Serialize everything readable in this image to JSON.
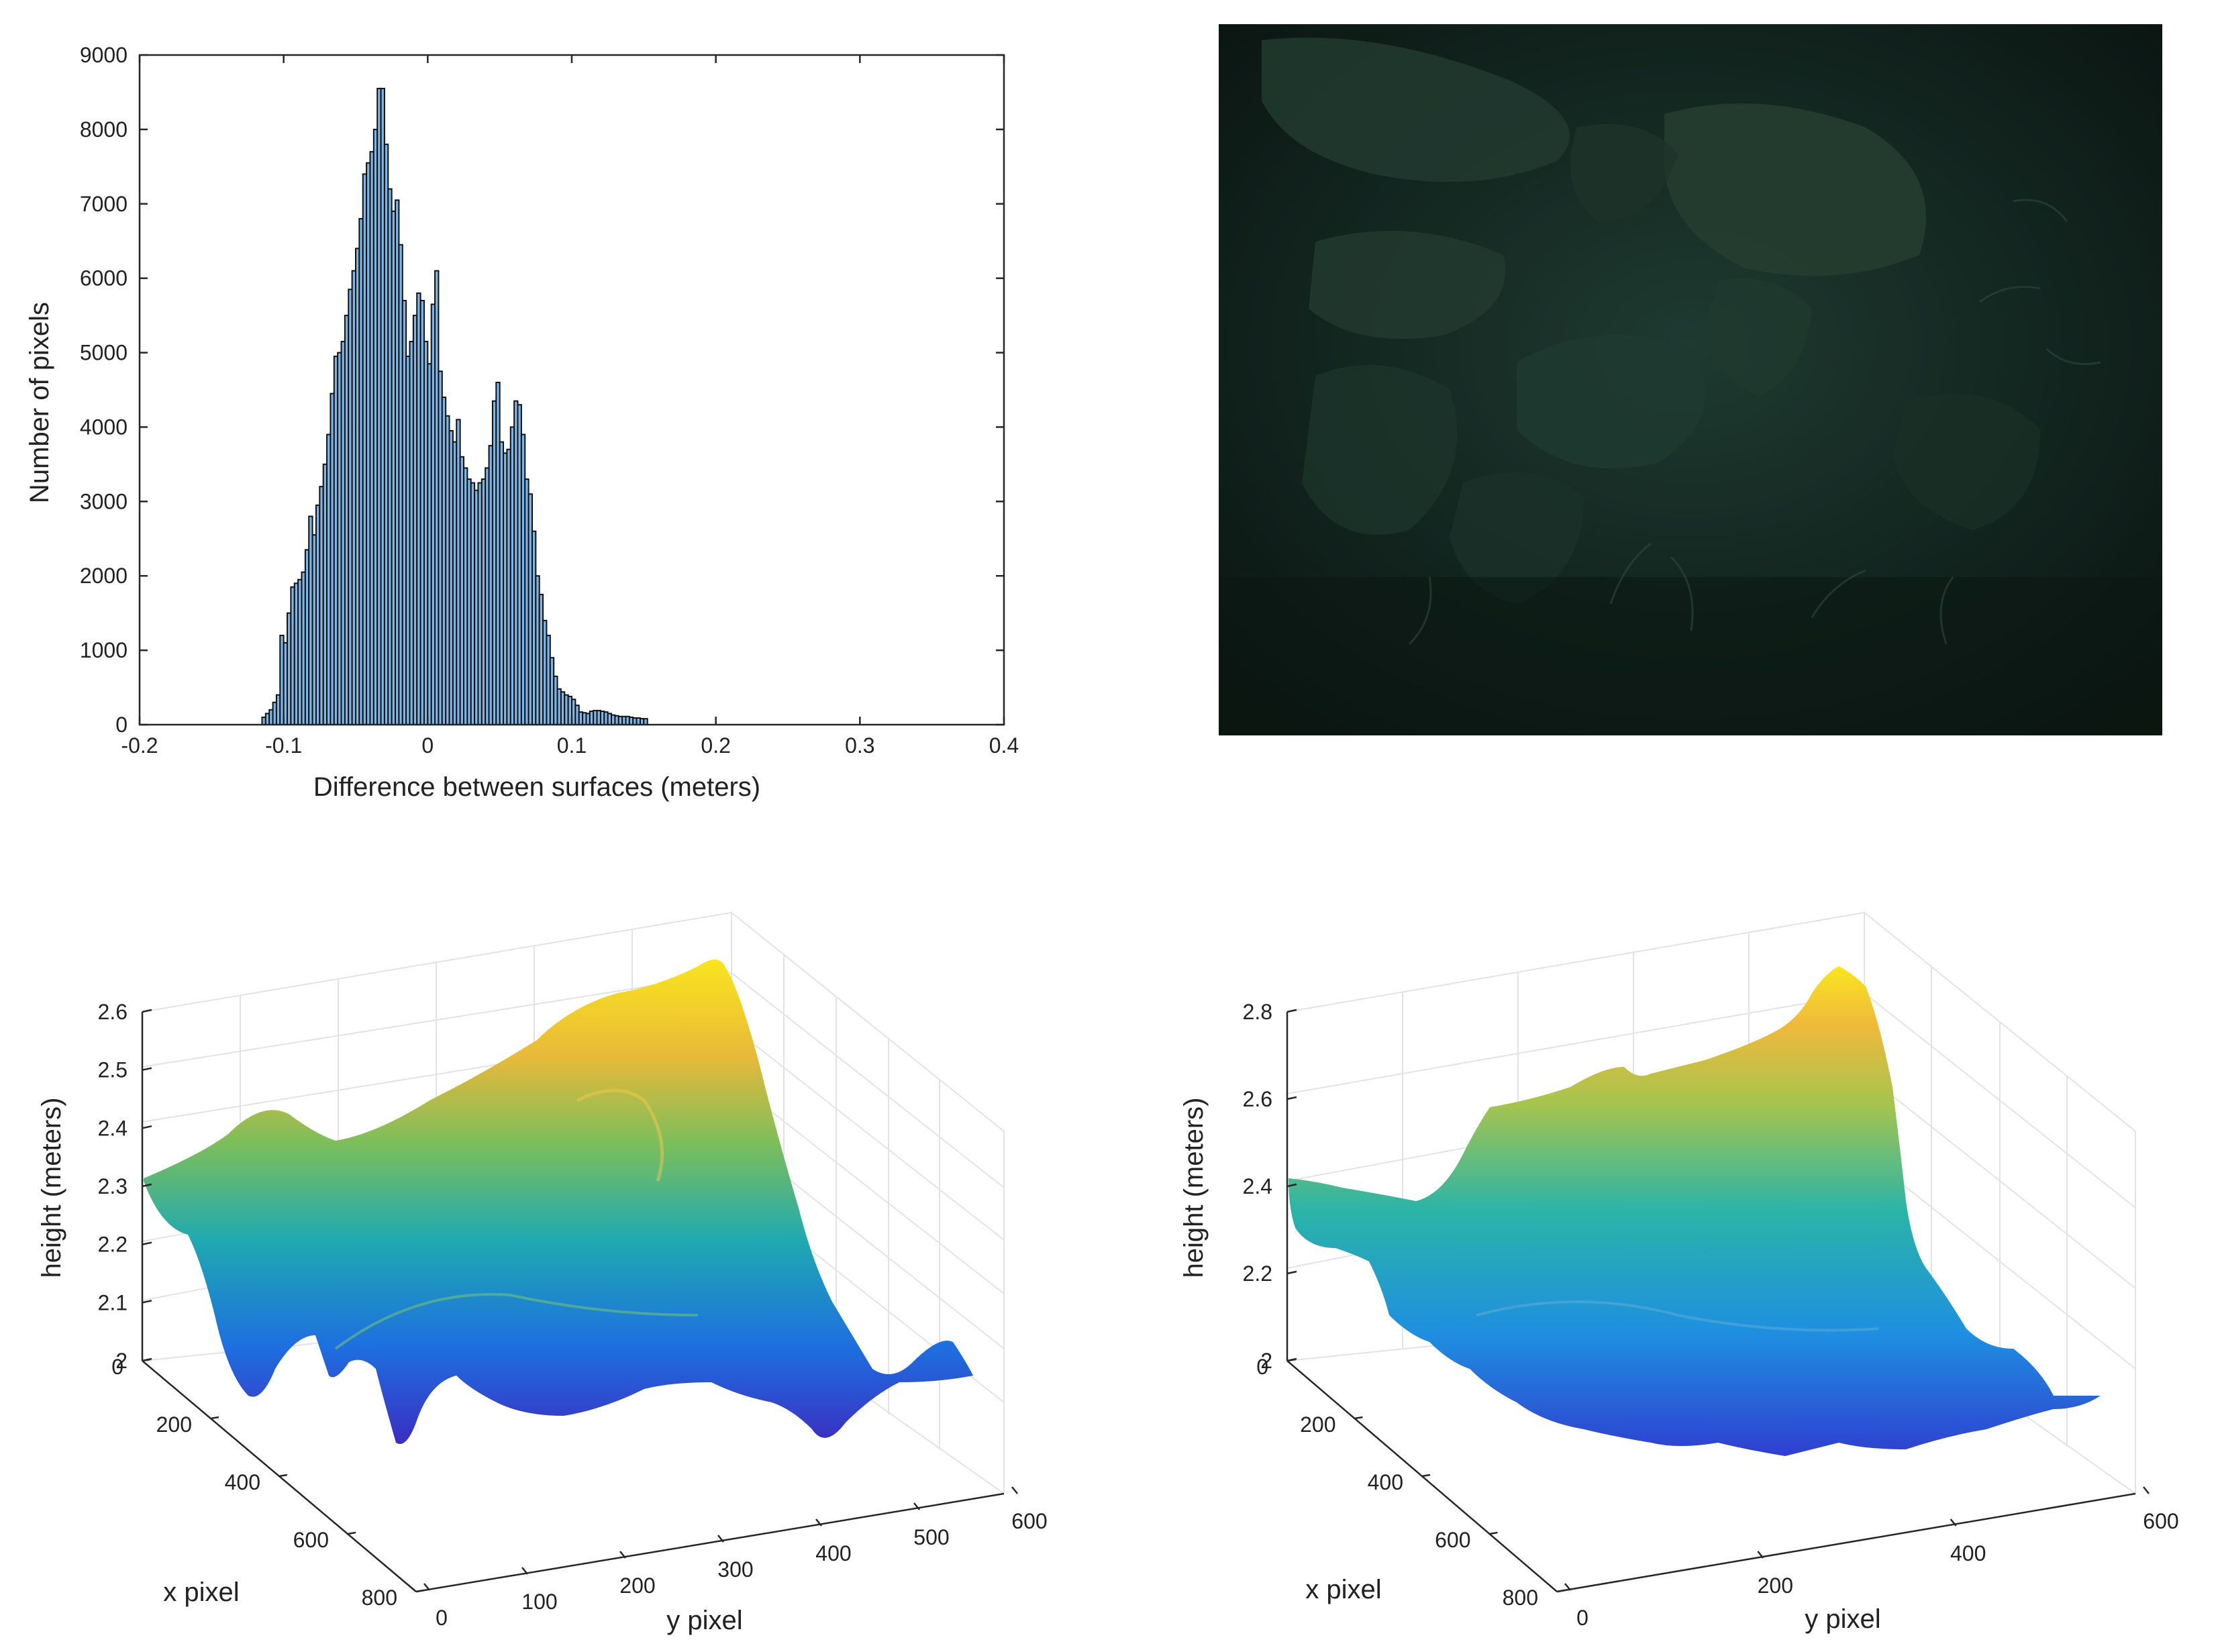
{
  "chart_data": [
    {
      "type": "bar",
      "panel": "histogram",
      "xlabel": "Difference between surfaces (meters)",
      "ylabel": "Number of pixels",
      "xlim": [
        -0.2,
        0.4
      ],
      "ylim": [
        0,
        9000
      ],
      "xticks": [
        "-0.2",
        "-0.1",
        "0",
        "0.1",
        "0.2",
        "0.3",
        "0.4"
      ],
      "yticks": [
        "0",
        "1000",
        "2000",
        "3000",
        "4000",
        "5000",
        "6000",
        "7000",
        "8000",
        "9000"
      ],
      "bin_start": -0.115,
      "bin_width": 0.0025,
      "values": [
        100,
        150,
        200,
        300,
        400,
        1200,
        1100,
        1500,
        1850,
        1900,
        1950,
        2050,
        2350,
        2800,
        2550,
        2950,
        3200,
        3500,
        3900,
        4450,
        4950,
        5000,
        5150,
        5500,
        5850,
        6100,
        6400,
        6800,
        7400,
        7550,
        7700,
        8000,
        8550,
        8550,
        7800,
        7200,
        6900,
        7050,
        6450,
        5700,
        4950,
        5150,
        5500,
        5800,
        5700,
        5150,
        4850,
        5650,
        6100,
        4750,
        4400,
        4150,
        3950,
        3800,
        4100,
        3600,
        3450,
        3300,
        3250,
        3150,
        3250,
        3300,
        3450,
        3750,
        4350,
        4600,
        3800,
        3650,
        3700,
        4000,
        4350,
        4300,
        3900,
        3300,
        3100,
        2600,
        2000,
        1750,
        1400,
        1200,
        900,
        650,
        480,
        440,
        400,
        380,
        340,
        260,
        170,
        160,
        150,
        180,
        190,
        190,
        180,
        170,
        150,
        130,
        120,
        110,
        110,
        110,
        100,
        90,
        90,
        80,
        80
      ]
    },
    {
      "type": "surface",
      "panel": "surface-left",
      "zlabel": "height (meters)",
      "xlabel": "x pixel",
      "ylabel": "y pixel",
      "zticks": [
        "2",
        "2.1",
        "2.2",
        "2.3",
        "2.4",
        "2.5",
        "2.6"
      ],
      "xticks": [
        "0",
        "200",
        "400",
        "600",
        "800"
      ],
      "yticks": [
        "0",
        "100",
        "200",
        "300",
        "400",
        "500",
        "600"
      ]
    },
    {
      "type": "surface",
      "panel": "surface-right",
      "zlabel": "height (meters)",
      "xlabel": "x pixel",
      "ylabel": "y pixel",
      "zticks": [
        "2",
        "2.2",
        "2.4",
        "2.6",
        "2.8"
      ],
      "xticks": [
        "0",
        "200",
        "400",
        "600",
        "800"
      ],
      "yticks": [
        "0",
        "200",
        "400",
        "600"
      ]
    }
  ],
  "colors": {
    "bar_fill": "#7fb4e6",
    "photo_bg": "#0f1a17",
    "surface_low": "#3b2ec0",
    "surface_mid": "#1fa9b0",
    "surface_high": "#f9e51e"
  }
}
